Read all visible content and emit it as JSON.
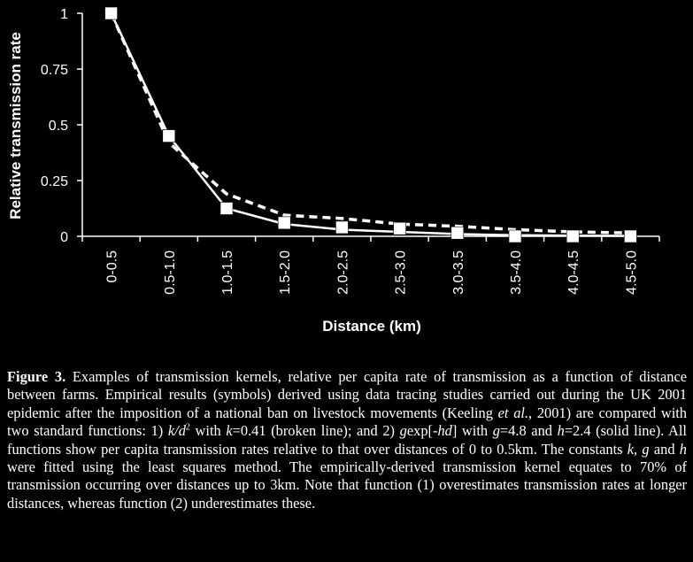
{
  "chart_data": {
    "type": "line",
    "categories": [
      "0-0.5",
      "0.5-1.0",
      "1.0-1.5",
      "1.5-2.0",
      "2.0-2.5",
      "2.5-3.0",
      "3.0-3.5",
      "3.5-4.0",
      "4.0-4.5",
      "4.5-5.0"
    ],
    "xlabel": "Distance (km)",
    "ylabel": "Relative transmission rate",
    "ylim": [
      0,
      1
    ],
    "yticks": [
      0,
      0.25,
      0.5,
      0.75,
      1
    ],
    "ytick_labels": [
      "0",
      "0.25",
      "0.5",
      "0.75",
      "1"
    ],
    "grid": false,
    "legend": "none",
    "series": [
      {
        "style": "markers",
        "values": [
          1.0,
          0.45,
          0.125,
          0.06,
          0.04,
          0.035,
          0.015,
          0.0,
          0.0,
          0.0
        ]
      },
      {
        "style": "dashed",
        "values": [
          1.0,
          0.42,
          0.19,
          0.095,
          0.08,
          0.055,
          0.045,
          0.03,
          0.02,
          0.015
        ]
      },
      {
        "style": "solid",
        "values": [
          1.0,
          0.45,
          0.125,
          0.055,
          0.03,
          0.02,
          0.01,
          0.005,
          0.003,
          0.002
        ]
      }
    ],
    "colors": {
      "background": "#000000",
      "foreground": "#ffffff"
    }
  },
  "caption": {
    "label": "Figure 3.",
    "t1": " Examples of transmission kernels, relative per capita rate of transmission as a function of distance between farms. Empirical results (symbols) derived using data tracing studies carried out during the UK 2001 epidemic after the imposition of a national ban on livestock movements (Keeling ",
    "etal": "et al.",
    "t2": ", 2001) are compared with two standard functions: 1) ",
    "f1a": "k/d",
    "f1sup": "2",
    "t3": " with ",
    "k1": "k",
    "t4": "=0.41 (broken line); and 2) ",
    "f2a": "g",
    "f2b": "exp[-",
    "f2c": "hd",
    "f2d": "]",
    "t5": " with ",
    "g1": "g",
    "t6": "=4.8 and ",
    "h1": "h",
    "t7": "=2.4 (solid line). All functions show per capita transmission rates relative to that over distances of 0 to 0.5km. The constants ",
    "k2": "k",
    "t8": ", ",
    "g2": "g",
    "t9": " and ",
    "h2": "h",
    "t10": " were fitted using the least squares method. The empirically-derived transmission kernel equates to 70% of transmission occurring over distances up to 3km. Note that function (1) overestimates transmission rates at longer distances, whereas function (2) underestimates these."
  }
}
